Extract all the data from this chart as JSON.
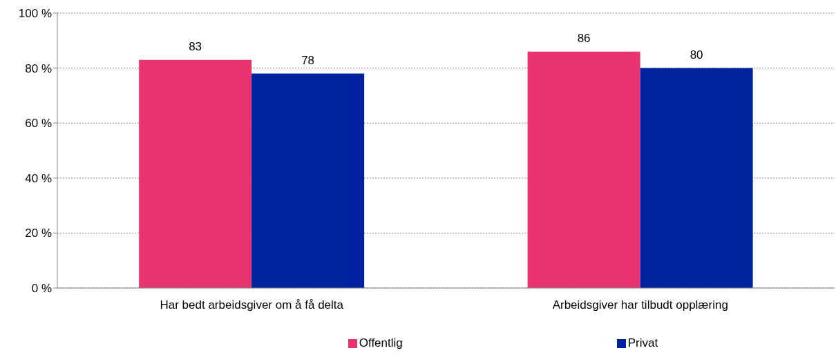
{
  "chart_data": {
    "type": "bar",
    "categories": [
      "Har bedt arbeidsgiver om å få delta",
      "Arbeidsgiver har tilbudt opplæring"
    ],
    "series": [
      {
        "name": "Offentlig",
        "color": "#e83370",
        "values": [
          83,
          86
        ]
      },
      {
        "name": "Privat",
        "color": "#0022a0",
        "values": [
          78,
          80
        ]
      }
    ],
    "ylim": [
      0,
      100
    ],
    "yticks": [
      {
        "value": 0,
        "label": "0 %"
      },
      {
        "value": 20,
        "label": "20 %"
      },
      {
        "value": 40,
        "label": "40 %"
      },
      {
        "value": 60,
        "label": "60 %"
      },
      {
        "value": 80,
        "label": "80 %"
      },
      {
        "value": 100,
        "label": "100 %"
      }
    ],
    "grid": "y",
    "legend": "bottom",
    "data_labels": true
  }
}
